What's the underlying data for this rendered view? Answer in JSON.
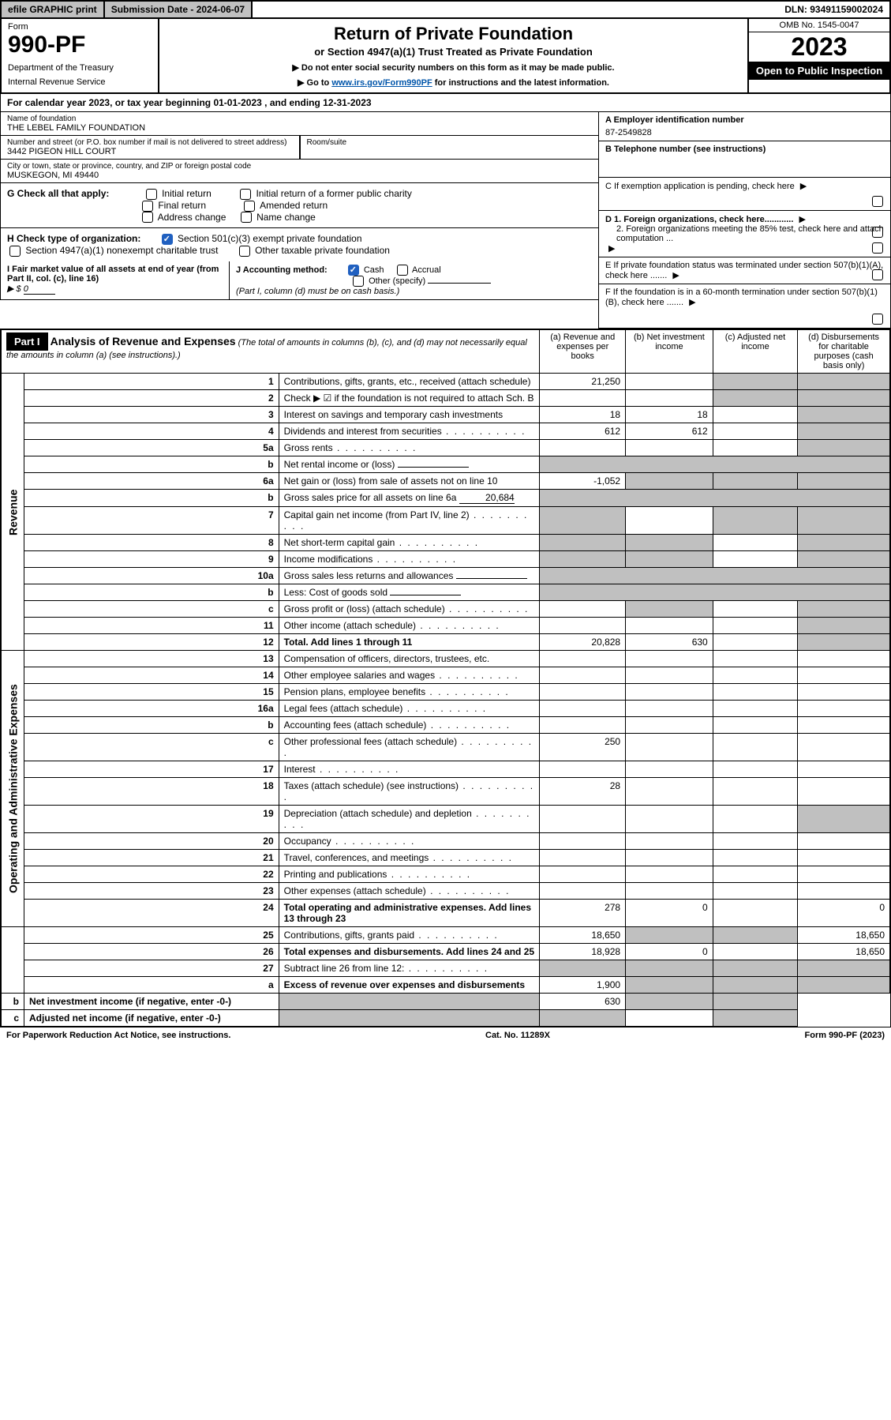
{
  "topbar": {
    "efile": "efile GRAPHIC print",
    "subm_label": "Submission Date - 2024-06-07",
    "dln": "DLN: 93491159002024"
  },
  "header": {
    "form_label": "Form",
    "form_num": "990-PF",
    "dept": "Department of the Treasury",
    "irs": "Internal Revenue Service",
    "title": "Return of Private Foundation",
    "subtitle": "or Section 4947(a)(1) Trust Treated as Private Foundation",
    "note1": "▶ Do not enter social security numbers on this form as it may be made public.",
    "note2_pre": "▶ Go to ",
    "note2_link": "www.irs.gov/Form990PF",
    "note2_post": " for instructions and the latest information.",
    "omb": "OMB No. 1545-0047",
    "year": "2023",
    "open": "Open to Public Inspection"
  },
  "cal_year": "For calendar year 2023, or tax year beginning 01-01-2023                   , and ending 12-31-2023",
  "name_block": {
    "name_label": "Name of foundation",
    "name_val": "THE LEBEL FAMILY FOUNDATION",
    "addr_label": "Number and street (or P.O. box number if mail is not delivered to street address)",
    "addr_val": "3442 PIGEON HILL COURT",
    "room_label": "Room/suite",
    "city_label": "City or town, state or province, country, and ZIP or foreign postal code",
    "city_val": "MUSKEGON, MI  49440"
  },
  "right_block": {
    "a_label": "A Employer identification number",
    "a_val": "87-2549828",
    "b_label": "B Telephone number (see instructions)",
    "c_label": "C If exemption application is pending, check here",
    "d1_label": "D 1. Foreign organizations, check here............",
    "d2_label": "2. Foreign organizations meeting the 85% test, check here and attach computation ...",
    "e_label": "E  If private foundation status was terminated under section 507(b)(1)(A), check here .......",
    "f_label": "F  If the foundation is in a 60-month termination under section 507(b)(1)(B), check here ......."
  },
  "g_block": {
    "label": "G Check all that apply:",
    "opts": [
      "Initial return",
      "Initial return of a former public charity",
      "Final return",
      "Amended return",
      "Address change",
      "Name change"
    ]
  },
  "h_block": {
    "label": "H Check type of organization:",
    "opt1": "Section 501(c)(3) exempt private foundation",
    "opt2": "Section 4947(a)(1) nonexempt charitable trust",
    "opt3": "Other taxable private foundation"
  },
  "i_block": {
    "label": "I Fair market value of all assets at end of year (from Part II, col. (c), line 16)",
    "val_pre": "▶ $",
    "val": "0"
  },
  "j_block": {
    "label": "J Accounting method:",
    "opt1": "Cash",
    "opt2": "Accrual",
    "opt3": "Other (specify)",
    "note": "(Part I, column (d) must be on cash basis.)"
  },
  "part1": {
    "tag": "Part I",
    "title": "Analysis of Revenue and Expenses",
    "title_note": "(The total of amounts in columns (b), (c), and (d) may not necessarily equal the amounts in column (a) (see instructions).)",
    "col_a": "(a)   Revenue and expenses per books",
    "col_b": "(b)   Net investment income",
    "col_c": "(c)   Adjusted net income",
    "col_d": "(d)   Disbursements for charitable purposes (cash basis only)"
  },
  "side_rev": "Revenue",
  "side_exp": "Operating and Administrative Expenses",
  "rows": [
    {
      "n": "1",
      "desc": "Contributions, gifts, grants, etc., received (attach schedule)",
      "a": "21,250",
      "b": "",
      "c": "",
      "d": "",
      "grey_c": true,
      "grey_d": true
    },
    {
      "n": "2",
      "desc": "Check ▶ ☑ if the foundation is not required to attach Sch. B",
      "no_cols": true,
      "desc_class": "bold-not"
    },
    {
      "n": "3",
      "desc": "Interest on savings and temporary cash investments",
      "a": "18",
      "b": "18",
      "c": "",
      "d": "",
      "grey_d": true
    },
    {
      "n": "4",
      "desc": "Dividends and interest from securities",
      "a": "612",
      "b": "612",
      "c": "",
      "d": "",
      "grey_d": true
    },
    {
      "n": "5a",
      "desc": "Gross rents",
      "a": "",
      "b": "",
      "c": "",
      "d": "",
      "grey_d": true
    },
    {
      "n": "b",
      "desc": "Net rental income or (loss)",
      "sub": true,
      "half": true,
      "grey_rest": true
    },
    {
      "n": "6a",
      "desc": "Net gain or (loss) from sale of assets not on line 10",
      "a": "-1,052",
      "b": "",
      "c": "",
      "d": "",
      "grey_b": true,
      "grey_c": true,
      "grey_d": true
    },
    {
      "n": "b",
      "desc": "Gross sales price for all assets on line 6a",
      "sub": true,
      "inline_val": "20,684",
      "grey_rest": true
    },
    {
      "n": "7",
      "desc": "Capital gain net income (from Part IV, line 2)",
      "a": "",
      "b": "",
      "grey_a": true,
      "grey_c": true,
      "grey_d": true
    },
    {
      "n": "8",
      "desc": "Net short-term capital gain",
      "a": "",
      "grey_a": true,
      "grey_b": true,
      "grey_d": true
    },
    {
      "n": "9",
      "desc": "Income modifications",
      "grey_a": true,
      "grey_b": true,
      "grey_d": true
    },
    {
      "n": "10a",
      "desc": "Gross sales less returns and allowances",
      "sub": true,
      "half": true,
      "grey_rest": true
    },
    {
      "n": "b",
      "desc": "Less: Cost of goods sold",
      "sub": true,
      "half": true,
      "grey_rest": true
    },
    {
      "n": "c",
      "desc": "Gross profit or (loss) (attach schedule)",
      "a": "",
      "b": "",
      "grey_b": true,
      "grey_d": true
    },
    {
      "n": "11",
      "desc": "Other income (attach schedule)",
      "a": "",
      "b": "",
      "c": "",
      "grey_d": true
    },
    {
      "n": "12",
      "desc": "Total. Add lines 1 through 11",
      "bold": true,
      "a": "20,828",
      "b": "630",
      "c": "",
      "grey_d": true
    },
    {
      "n": "13",
      "desc": "Compensation of officers, directors, trustees, etc.",
      "a": "",
      "b": "",
      "c": "",
      "d": ""
    },
    {
      "n": "14",
      "desc": "Other employee salaries and wages",
      "a": "",
      "b": "",
      "c": "",
      "d": ""
    },
    {
      "n": "15",
      "desc": "Pension plans, employee benefits",
      "a": "",
      "b": "",
      "c": "",
      "d": ""
    },
    {
      "n": "16a",
      "desc": "Legal fees (attach schedule)",
      "a": "",
      "b": "",
      "c": "",
      "d": ""
    },
    {
      "n": "b",
      "desc": "Accounting fees (attach schedule)",
      "a": "",
      "b": "",
      "c": "",
      "d": ""
    },
    {
      "n": "c",
      "desc": "Other professional fees (attach schedule)",
      "a": "250",
      "b": "",
      "c": "",
      "d": ""
    },
    {
      "n": "17",
      "desc": "Interest",
      "a": "",
      "b": "",
      "c": "",
      "d": ""
    },
    {
      "n": "18",
      "desc": "Taxes (attach schedule) (see instructions)",
      "a": "28",
      "b": "",
      "c": "",
      "d": ""
    },
    {
      "n": "19",
      "desc": "Depreciation (attach schedule) and depletion",
      "a": "",
      "b": "",
      "c": "",
      "grey_d": true
    },
    {
      "n": "20",
      "desc": "Occupancy",
      "a": "",
      "b": "",
      "c": "",
      "d": ""
    },
    {
      "n": "21",
      "desc": "Travel, conferences, and meetings",
      "a": "",
      "b": "",
      "c": "",
      "d": ""
    },
    {
      "n": "22",
      "desc": "Printing and publications",
      "a": "",
      "b": "",
      "c": "",
      "d": ""
    },
    {
      "n": "23",
      "desc": "Other expenses (attach schedule)",
      "a": "",
      "b": "",
      "c": "",
      "d": ""
    },
    {
      "n": "24",
      "desc": "Total operating and administrative expenses. Add lines 13 through 23",
      "bold": true,
      "a": "278",
      "b": "0",
      "c": "",
      "d": "0"
    },
    {
      "n": "25",
      "desc": "Contributions, gifts, grants paid",
      "a": "18,650",
      "grey_b": true,
      "grey_c": true,
      "d": "18,650"
    },
    {
      "n": "26",
      "desc": "Total expenses and disbursements. Add lines 24 and 25",
      "bold": true,
      "a": "18,928",
      "b": "0",
      "c": "",
      "d": "18,650"
    },
    {
      "n": "27",
      "desc": "Subtract line 26 from line 12:",
      "grey_all": true
    },
    {
      "n": "a",
      "desc": "Excess of revenue over expenses and disbursements",
      "bold": true,
      "a": "1,900",
      "grey_b": true,
      "grey_c": true,
      "grey_d": true
    },
    {
      "n": "b",
      "desc": "Net investment income (if negative, enter -0-)",
      "bold": true,
      "grey_a": true,
      "b": "630",
      "grey_c": true,
      "grey_d": true
    },
    {
      "n": "c",
      "desc": "Adjusted net income (if negative, enter -0-)",
      "bold": true,
      "grey_a": true,
      "grey_b": true,
      "c": "",
      "grey_d": true
    }
  ],
  "footer": {
    "left": "For Paperwork Reduction Act Notice, see instructions.",
    "mid": "Cat. No. 11289X",
    "right": "Form 990-PF (2023)"
  }
}
